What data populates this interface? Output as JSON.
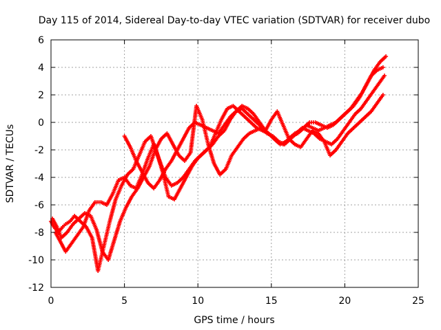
{
  "chart_data": {
    "type": "scatter",
    "title": "Day 115 of 2014, Sidereal Day-to-day VTEC variation (SDTVAR) for receiver dubo",
    "xlabel": "GPS time / hours",
    "ylabel": "SDTVAR / TECUs",
    "xlim": [
      0,
      25
    ],
    "ylim": [
      -12,
      6
    ],
    "x_ticks": [
      0,
      5,
      10,
      15,
      20,
      25
    ],
    "y_ticks": [
      -12,
      -10,
      -8,
      -6,
      -4,
      -2,
      0,
      2,
      4,
      6
    ],
    "grid": true,
    "marker": "plus",
    "color": "#ff0000",
    "series": [
      {
        "x": [
          0.0,
          0.2,
          0.5,
          0.8,
          1.0,
          1.3,
          1.6,
          2.0,
          2.4,
          2.8,
          3.2,
          3.6,
          4.0,
          4.4,
          4.8,
          5.2,
          5.6,
          6.0,
          6.4,
          6.8,
          7.2,
          7.6,
          8.0,
          8.4,
          8.8,
          9.2,
          9.6,
          10.0,
          10.4,
          10.8,
          11.2,
          11.6,
          12.0,
          12.4,
          12.8,
          13.2,
          13.6,
          14.0,
          14.4,
          14.8,
          15.2,
          15.6,
          16.0,
          16.4,
          16.8,
          17.2,
          17.6,
          18.0,
          18.4,
          18.8,
          19.2,
          19.6,
          20.0,
          20.4,
          20.8,
          21.2,
          21.6,
          22.0,
          22.4,
          22.8
        ],
        "y": [
          -7.2,
          -7.6,
          -8.0,
          -7.6,
          -7.4,
          -7.2,
          -6.8,
          -7.2,
          -7.6,
          -8.4,
          -10.8,
          -9.0,
          -7.2,
          -5.6,
          -4.6,
          -3.8,
          -3.4,
          -2.4,
          -1.4,
          -1.0,
          -2.2,
          -3.6,
          -5.4,
          -5.6,
          -4.8,
          -4.0,
          -3.2,
          -2.6,
          -2.2,
          -1.8,
          -0.8,
          0.2,
          1.0,
          1.2,
          0.8,
          0.4,
          0.0,
          -0.4,
          -0.6,
          -0.8,
          -1.2,
          -1.6,
          -1.4,
          -1.0,
          -0.8,
          -0.4,
          0.0,
          0.0,
          -0.2,
          -0.4,
          -0.2,
          0.2,
          0.6,
          1.0,
          1.6,
          2.2,
          3.0,
          3.8,
          4.4,
          4.8
        ]
      },
      {
        "x": [
          0.3,
          0.6,
          1.0,
          1.4,
          1.8,
          2.2,
          2.6,
          3.0,
          3.4,
          3.8,
          4.2,
          4.6,
          5.0,
          5.4,
          5.8,
          6.2,
          6.6,
          7.0,
          7.4,
          7.8,
          8.2,
          8.6,
          9.0,
          9.4,
          9.8,
          10.2,
          10.6,
          11.0,
          11.4,
          11.8,
          12.2,
          12.6,
          13.0,
          13.4,
          13.8,
          14.2,
          14.6,
          15.0,
          15.4,
          15.8,
          16.2,
          16.6,
          17.0,
          17.4,
          17.8,
          18.2,
          18.6,
          19.0,
          19.4,
          19.8,
          20.2,
          20.6,
          21.0,
          21.4,
          21.8,
          22.2,
          22.6
        ],
        "y": [
          -8.0,
          -8.6,
          -9.4,
          -8.8,
          -8.2,
          -7.6,
          -6.4,
          -5.8,
          -5.8,
          -6.0,
          -5.2,
          -4.2,
          -4.0,
          -4.6,
          -4.8,
          -3.8,
          -2.6,
          -1.6,
          -2.8,
          -4.0,
          -4.6,
          -4.4,
          -4.0,
          -3.4,
          -2.8,
          -2.4,
          -2.0,
          -1.6,
          -1.0,
          -0.6,
          0.2,
          0.8,
          1.0,
          0.6,
          0.2,
          -0.2,
          -0.6,
          -1.0,
          -1.4,
          -1.6,
          -1.2,
          -0.8,
          -0.6,
          -0.2,
          -0.4,
          -0.6,
          -0.4,
          -0.2,
          0.0,
          0.4,
          0.8,
          1.2,
          1.8,
          2.6,
          3.4,
          3.8,
          4.0
        ]
      },
      {
        "x": [
          0.1,
          0.4,
          0.7,
          1.1,
          1.5,
          1.9,
          2.3,
          2.7,
          3.1,
          3.5,
          3.9,
          4.3,
          4.7,
          5.1,
          5.5,
          5.9,
          6.3,
          6.7,
          7.1,
          7.5,
          7.9,
          8.3,
          8.7,
          9.1,
          9.5,
          9.9,
          10.3,
          10.7,
          11.1,
          11.5,
          11.9,
          12.3,
          12.7,
          13.1,
          13.5,
          13.9,
          14.3,
          14.7,
          15.1,
          15.5,
          15.9,
          16.3,
          16.7,
          17.1,
          17.5,
          17.9,
          18.3,
          18.7,
          19.1,
          19.5,
          19.9,
          20.3,
          20.7,
          21.1,
          21.5,
          21.9,
          22.3,
          22.7
        ],
        "y": [
          -7.0,
          -7.6,
          -8.4,
          -8.0,
          -7.4,
          -7.0,
          -6.6,
          -6.8,
          -7.8,
          -9.4,
          -10.0,
          -8.6,
          -7.2,
          -6.2,
          -5.4,
          -4.8,
          -4.0,
          -3.2,
          -2.0,
          -1.2,
          -0.8,
          -1.6,
          -2.4,
          -2.8,
          -2.2,
          1.2,
          0.2,
          -1.6,
          -3.0,
          -3.8,
          -3.4,
          -2.4,
          -1.8,
          -1.2,
          -0.8,
          -0.6,
          -0.4,
          -0.8,
          -1.0,
          -1.4,
          -1.6,
          -1.2,
          -0.8,
          -0.4,
          -0.6,
          -0.8,
          -1.2,
          -1.4,
          -1.6,
          -1.2,
          -0.6,
          0.0,
          0.6,
          1.0,
          1.6,
          2.2,
          2.8,
          3.4
        ]
      },
      {
        "x": [
          5.0,
          5.4,
          5.8,
          6.2,
          6.6,
          7.0,
          7.4,
          7.8,
          8.2,
          8.6,
          9.0,
          9.4,
          9.8,
          10.2,
          10.6,
          11.0,
          11.4,
          11.8,
          12.2,
          12.6,
          13.0,
          13.4,
          13.8,
          14.2,
          14.6,
          15.0,
          15.4,
          15.8,
          16.2,
          16.6,
          17.0,
          17.4,
          17.8,
          18.2,
          18.6,
          19.0,
          19.4,
          19.8,
          20.2,
          20.6,
          21.0,
          21.4,
          21.8,
          22.2,
          22.6
        ],
        "y": [
          -1.0,
          -1.8,
          -2.8,
          -3.6,
          -4.4,
          -4.8,
          -4.2,
          -3.4,
          -2.8,
          -2.0,
          -1.2,
          -0.4,
          0.0,
          -0.2,
          -0.4,
          -0.6,
          -0.8,
          -0.2,
          0.4,
          0.8,
          1.2,
          1.0,
          0.6,
          0.0,
          -0.6,
          0.2,
          0.8,
          -0.2,
          -1.2,
          -1.6,
          -1.8,
          -1.2,
          -0.6,
          -0.8,
          -1.4,
          -2.4,
          -2.0,
          -1.4,
          -0.8,
          -0.4,
          0.0,
          0.4,
          0.8,
          1.4,
          2.0
        ]
      }
    ]
  }
}
